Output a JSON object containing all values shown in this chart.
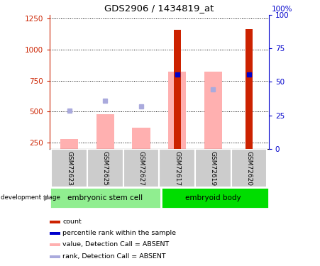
{
  "title": "GDS2906 / 1434819_at",
  "samples": [
    "GSM72623",
    "GSM72625",
    "GSM72627",
    "GSM72617",
    "GSM72619",
    "GSM72620"
  ],
  "red_bars": [
    null,
    null,
    null,
    1160,
    null,
    1165
  ],
  "pink_bars": [
    280,
    480,
    370,
    820,
    820,
    null
  ],
  "blue_squares_lval": [
    null,
    null,
    null,
    800,
    null,
    800
  ],
  "lavender_squares_lval": [
    510,
    590,
    540,
    null,
    680,
    null
  ],
  "ylim_left": [
    200,
    1280
  ],
  "ylim_right": [
    0,
    100
  ],
  "yticks_left": [
    250,
    500,
    750,
    1000,
    1250
  ],
  "yticks_right": [
    0,
    25,
    50,
    75,
    100
  ],
  "left_axis_color": "#cc2200",
  "right_axis_color": "#0000cc",
  "group1_name": "embryonic stem cell",
  "group2_name": "embryoid body",
  "group1_color": "#90ee90",
  "group2_color": "#00dd00",
  "sample_bg_color": "#cccccc",
  "legend_colors": [
    "#cc2200",
    "#0000cc",
    "#ffb0b0",
    "#aaaadd"
  ],
  "legend_labels": [
    "count",
    "percentile rank within the sample",
    "value, Detection Call = ABSENT",
    "rank, Detection Call = ABSENT"
  ],
  "dev_stage_label": "development stage"
}
